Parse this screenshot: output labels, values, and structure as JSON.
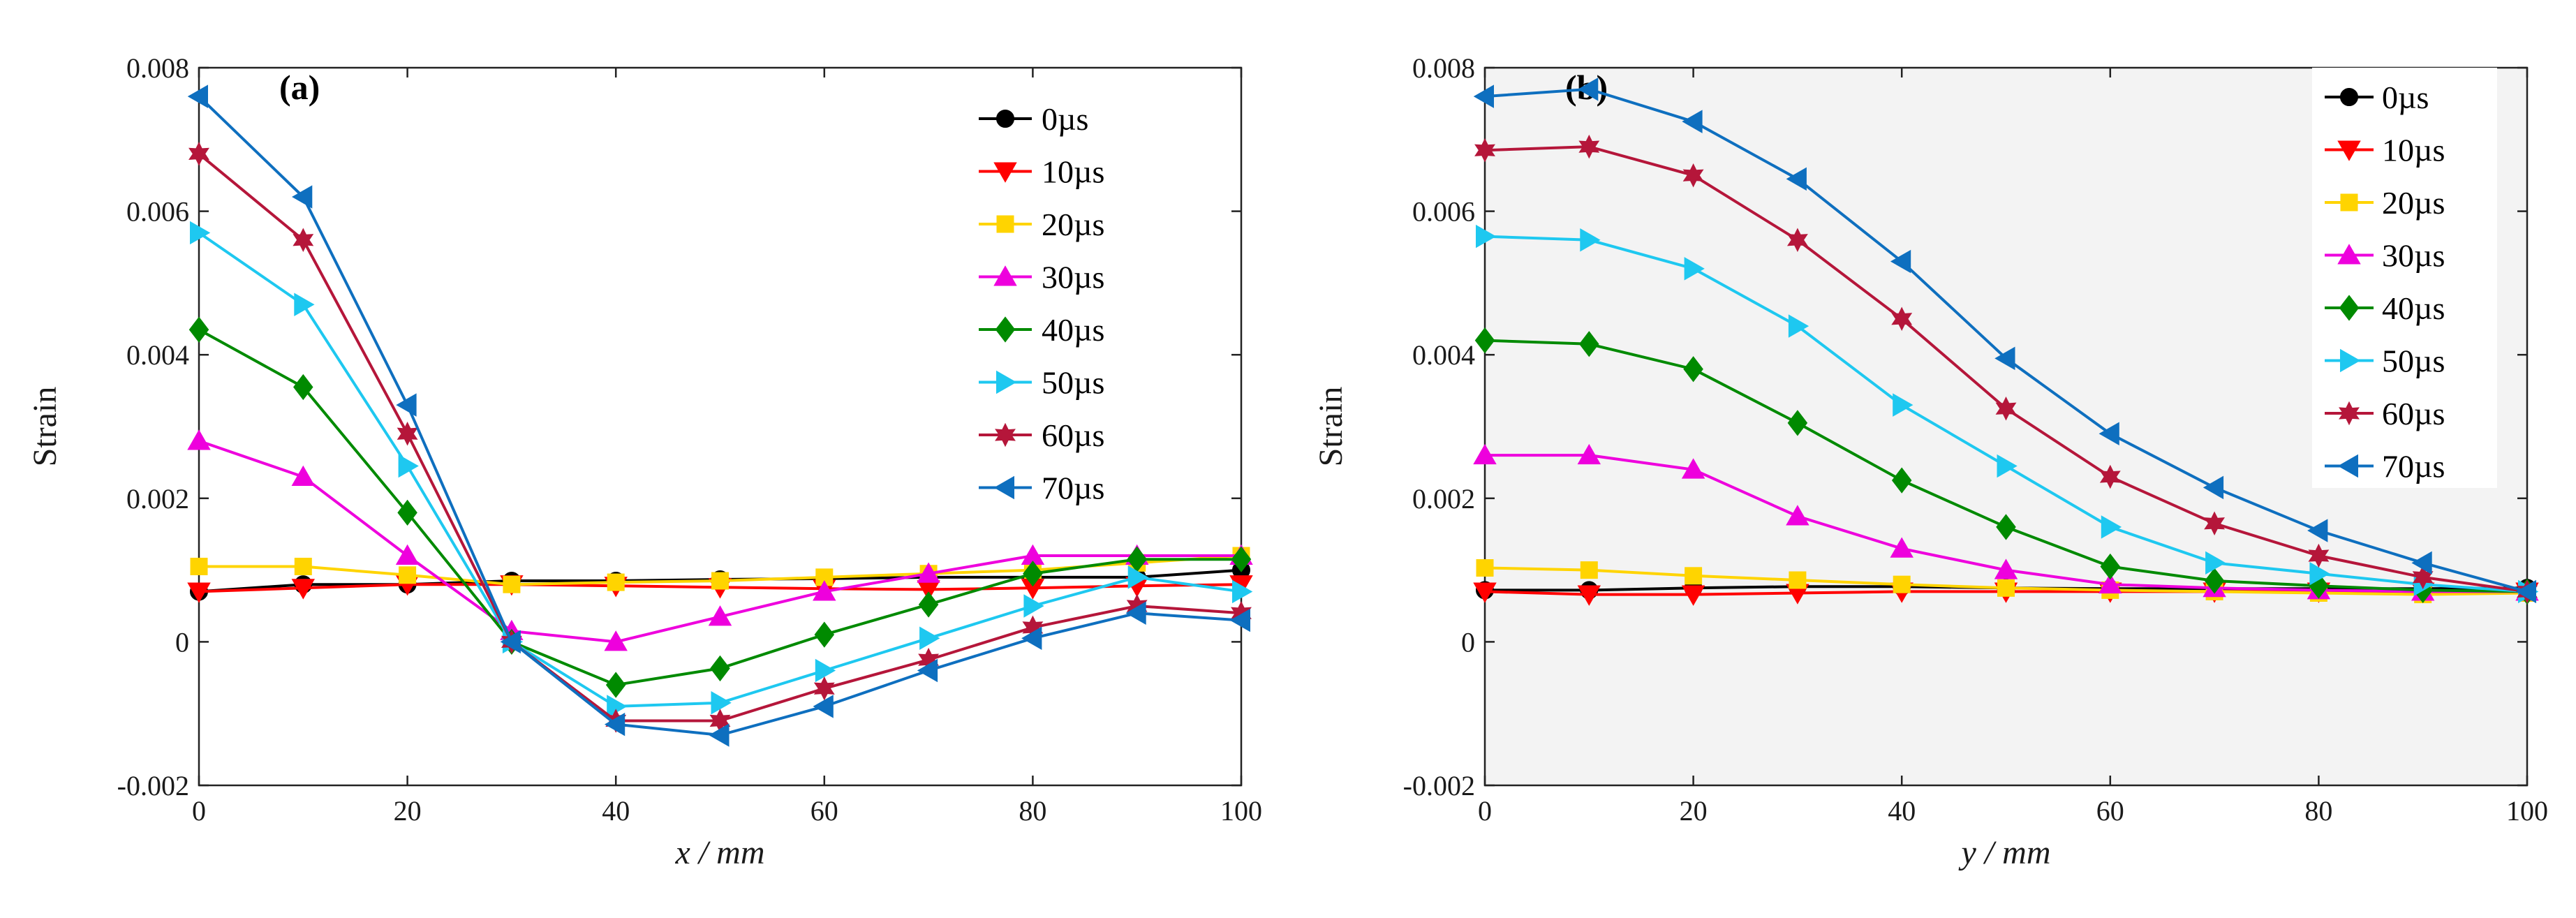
{
  "figure": {
    "colors": {
      "0µs": "#000000",
      "10µs": "#ff0000",
      "20µs": "#ffd400",
      "30µs": "#ee00dd",
      "40µs": "#008a00",
      "50µs": "#1ec8f0",
      "60µs": "#b5163a",
      "70µs": "#0e6fbf"
    },
    "markers": {
      "0µs": "circle",
      "10µs": "triangle-down",
      "20µs": "square",
      "30µs": "triangle-up",
      "40µs": "diamond",
      "50µs": "triangle-right",
      "60µs": "hexagram",
      "70µs": "triangle-left"
    }
  },
  "chart_data": [
    {
      "type": "line",
      "panel_label": "(a)",
      "xlabel_var": "x",
      "xlabel_unit": " / mm",
      "ylabel": "Strain",
      "xlim": [
        0,
        100
      ],
      "ylim": [
        -0.002,
        0.008
      ],
      "xticks": [
        0,
        20,
        40,
        60,
        80,
        100
      ],
      "xtick_labels": [
        "0",
        "20",
        "40",
        "60",
        "80",
        "100"
      ],
      "yticks": [
        -0.002,
        0,
        0.002,
        0.004,
        0.006,
        0.008
      ],
      "ytick_labels": [
        "-0.002",
        "0",
        "0.002",
        "0.004",
        "0.006",
        "0.008"
      ],
      "background": "#ffffff",
      "grid": false,
      "legend_position": "top-right",
      "x": [
        0,
        10,
        20,
        30,
        40,
        50,
        60,
        70,
        80,
        90,
        100
      ],
      "series": [
        {
          "name": "0µs",
          "values": [
            0.0007,
            0.0008,
            0.0008,
            0.00085,
            0.00085,
            0.00087,
            0.00088,
            0.0009,
            0.0009,
            0.0009,
            0.001
          ]
        },
        {
          "name": "10µs",
          "values": [
            0.0007,
            0.00075,
            0.0008,
            0.0008,
            0.00078,
            0.00076,
            0.00074,
            0.00073,
            0.00075,
            0.00078,
            0.0008
          ]
        },
        {
          "name": "20µs",
          "values": [
            0.00105,
            0.00105,
            0.00093,
            0.0008,
            0.00083,
            0.00085,
            0.0009,
            0.00095,
            0.001,
            0.0011,
            0.0012
          ]
        },
        {
          "name": "30µs",
          "values": [
            0.0028,
            0.0023,
            0.0012,
            0.00015,
            0.0,
            0.00035,
            0.0007,
            0.00095,
            0.0012,
            0.0012,
            0.0012
          ]
        },
        {
          "name": "40µs",
          "values": [
            0.00435,
            0.00355,
            0.0018,
            0.0,
            -0.0006,
            -0.00037,
            0.0001,
            0.00052,
            0.00095,
            0.00115,
            0.00115
          ]
        },
        {
          "name": "50µs",
          "values": [
            0.0057,
            0.0047,
            0.00245,
            0.0,
            -0.0009,
            -0.00085,
            -0.0004,
            5e-05,
            0.0005,
            0.0009,
            0.0007
          ]
        },
        {
          "name": "60µs",
          "values": [
            0.0068,
            0.0056,
            0.0029,
            0.0,
            -0.0011,
            -0.0011,
            -0.00065,
            -0.00025,
            0.0002,
            0.0005,
            0.0004
          ]
        },
        {
          "name": "70µs",
          "values": [
            0.0076,
            0.0062,
            0.0033,
            0.0,
            -0.00115,
            -0.0013,
            -0.0009,
            -0.0004,
            5e-05,
            0.0004,
            0.0003
          ]
        }
      ]
    },
    {
      "type": "line",
      "panel_label": "(b)",
      "xlabel_var": "y",
      "xlabel_unit": " / mm",
      "ylabel": "Strain",
      "xlim": [
        0,
        100
      ],
      "ylim": [
        -0.002,
        0.008
      ],
      "xticks": [
        0,
        20,
        40,
        60,
        80,
        100
      ],
      "xtick_labels": [
        "0",
        "20",
        "40",
        "60",
        "80",
        "100"
      ],
      "yticks": [
        -0.002,
        0,
        0.002,
        0.004,
        0.006,
        0.008
      ],
      "ytick_labels": [
        "-0.002",
        "0",
        "0.002",
        "0.004",
        "0.006",
        "0.008"
      ],
      "background": "#f3f3f3",
      "grid": false,
      "legend_position": "top-right",
      "x": [
        0,
        10,
        20,
        30,
        40,
        50,
        60,
        70,
        80,
        90,
        100
      ],
      "series": [
        {
          "name": "0µs",
          "values": [
            0.00072,
            0.00072,
            0.00075,
            0.00077,
            0.00077,
            0.00075,
            0.00074,
            0.00074,
            0.00074,
            0.00074,
            0.00075
          ]
        },
        {
          "name": "10µs",
          "values": [
            0.0007,
            0.00066,
            0.00066,
            0.00068,
            0.0007,
            0.0007,
            0.0007,
            0.0007,
            0.0007,
            0.0007,
            0.0007
          ]
        },
        {
          "name": "20µs",
          "values": [
            0.00103,
            0.001,
            0.00092,
            0.00086,
            0.0008,
            0.00075,
            0.00072,
            0.0007,
            0.00068,
            0.00066,
            0.00068
          ]
        },
        {
          "name": "30µs",
          "values": [
            0.0026,
            0.0026,
            0.0024,
            0.00175,
            0.0013,
            0.001,
            0.0008,
            0.00075,
            0.00072,
            0.0007,
            0.0007
          ]
        },
        {
          "name": "40µs",
          "values": [
            0.0042,
            0.00415,
            0.0038,
            0.00305,
            0.00225,
            0.0016,
            0.00105,
            0.00085,
            0.00078,
            0.00072,
            0.0007
          ]
        },
        {
          "name": "50µs",
          "values": [
            0.00565,
            0.0056,
            0.0052,
            0.0044,
            0.0033,
            0.00245,
            0.0016,
            0.0011,
            0.00095,
            0.0008,
            0.0007
          ]
        },
        {
          "name": "60µs",
          "values": [
            0.00685,
            0.0069,
            0.0065,
            0.0056,
            0.0045,
            0.00325,
            0.0023,
            0.00165,
            0.0012,
            0.0009,
            0.0007
          ]
        },
        {
          "name": "70µs",
          "values": [
            0.0076,
            0.0077,
            0.00725,
            0.00645,
            0.0053,
            0.00395,
            0.0029,
            0.00215,
            0.00155,
            0.0011,
            0.0007
          ]
        }
      ]
    }
  ]
}
